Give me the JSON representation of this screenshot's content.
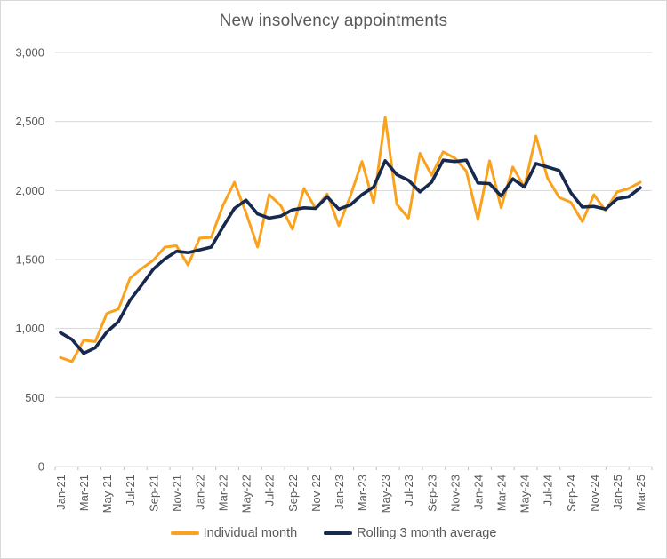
{
  "title": "New insolvency appointments",
  "colors": {
    "individual_month_line": "#FAA21E",
    "rolling_average_line": "#17294D",
    "gridline": "#D9D9D9",
    "axis_line": "#D9D9D9",
    "tick_mark": "#BFBFBF",
    "axis_text": "#595959",
    "title_text": "#595959",
    "frame_border": "#D9D9D9",
    "background": "#FFFFFF"
  },
  "legend": {
    "position": "bottom-center",
    "items": [
      {
        "label": "Individual month",
        "color_key": "individual_month_line"
      },
      {
        "label": "Rolling 3 month average",
        "color_key": "rolling_average_line"
      }
    ]
  },
  "y_axis": {
    "min": 0,
    "max": 3000,
    "step": 500,
    "tick_labels": [
      "0",
      "500",
      "1,000",
      "1,500",
      "2,000",
      "2,500",
      "3,000"
    ]
  },
  "x_axis": {
    "label_every_n_months": 2,
    "first_label": "Jan-21",
    "last_label": "Mar-25",
    "label_rotation_degrees": 90
  },
  "chart_data": {
    "type": "line",
    "title": "New insolvency appointments",
    "xlabel": "",
    "ylabel": "",
    "ylim": [
      0,
      3000
    ],
    "ytick_step": 500,
    "grid": "horizontal",
    "legend_position": "bottom",
    "xtick_label_every": 2,
    "categories": [
      "Jan-21",
      "Feb-21",
      "Mar-21",
      "Apr-21",
      "May-21",
      "Jun-21",
      "Jul-21",
      "Aug-21",
      "Sep-21",
      "Oct-21",
      "Nov-21",
      "Dec-21",
      "Jan-22",
      "Feb-22",
      "Mar-22",
      "Apr-22",
      "May-22",
      "Jun-22",
      "Jul-22",
      "Aug-22",
      "Sep-22",
      "Oct-22",
      "Nov-22",
      "Dec-22",
      "Jan-23",
      "Feb-23",
      "Mar-23",
      "Apr-23",
      "May-23",
      "Jun-23",
      "Jul-23",
      "Aug-23",
      "Sep-23",
      "Oct-23",
      "Nov-23",
      "Dec-23",
      "Jan-24",
      "Feb-24",
      "Mar-24",
      "Apr-24",
      "May-24",
      "Jun-24",
      "Jul-24",
      "Aug-24",
      "Sep-24",
      "Oct-24",
      "Nov-24",
      "Dec-24",
      "Jan-25",
      "Feb-25",
      "Mar-25"
    ],
    "series": [
      {
        "name": "Individual month",
        "color": "#FAA21E",
        "values": [
          790,
          760,
          915,
          905,
          1110,
          1140,
          1365,
          1435,
          1495,
          1590,
          1600,
          1460,
          1655,
          1660,
          1890,
          2060,
          1840,
          1590,
          1970,
          1890,
          1720,
          2015,
          1870,
          1975,
          1745,
          1960,
          2210,
          1910,
          2530,
          1900,
          1800,
          2270,
          2110,
          2280,
          2235,
          2140,
          1790,
          2215,
          1875,
          2170,
          2025,
          2395,
          2090,
          1950,
          1915,
          1775,
          1970,
          1855,
          1990,
          2015,
          2060
        ]
      },
      {
        "name": "Rolling 3 month average",
        "color": "#17294D",
        "values": [
          970,
          920,
          820,
          860,
          975,
          1050,
          1205,
          1315,
          1430,
          1505,
          1560,
          1550,
          1570,
          1590,
          1735,
          1870,
          1930,
          1830,
          1800,
          1815,
          1860,
          1875,
          1870,
          1955,
          1865,
          1895,
          1970,
          2025,
          2215,
          2115,
          2075,
          1990,
          2060,
          2220,
          2210,
          2220,
          2055,
          2050,
          1960,
          2085,
          2025,
          2195,
          2170,
          2145,
          1985,
          1880,
          1885,
          1865,
          1940,
          1955,
          2020
        ]
      }
    ]
  }
}
